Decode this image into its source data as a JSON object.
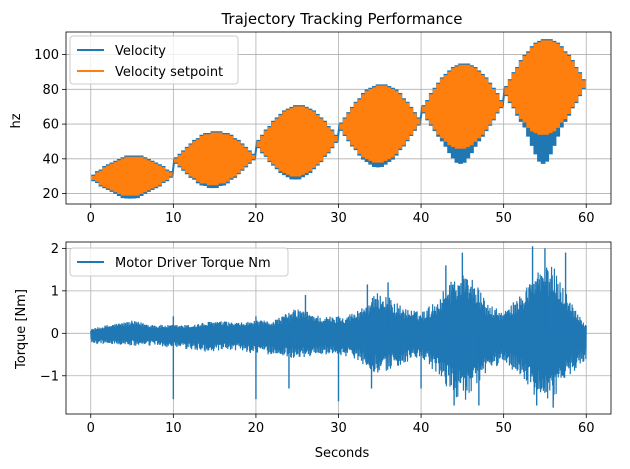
{
  "chart_data": [
    {
      "type": "line",
      "title": "Trajectory Tracking Performance",
      "xlabel": "",
      "ylabel": "hz",
      "xlim": [
        -3,
        63
      ],
      "ylim": [
        14,
        113
      ],
      "xticks": [
        0,
        10,
        20,
        30,
        40,
        50,
        60
      ],
      "yticks": [
        20,
        40,
        60,
        80,
        100
      ],
      "grid": true,
      "legend_position": "top-left",
      "series": [
        {
          "name": "Velocity",
          "color": "#1f77b4"
        },
        {
          "name": "Velocity setpoint",
          "color": "#ff7f0e"
        }
      ],
      "segments": [
        {
          "x_start": 0,
          "x_end": 10,
          "center": 30,
          "amplitude": 11,
          "velocity_dip": 1
        },
        {
          "x_start": 10,
          "x_end": 20,
          "center": 40,
          "amplitude": 15,
          "velocity_dip": 1
        },
        {
          "x_start": 20,
          "x_end": 30,
          "center": 50,
          "amplitude": 20,
          "velocity_dip": 1
        },
        {
          "x_start": 30,
          "x_end": 40,
          "center": 60,
          "amplitude": 22,
          "velocity_dip": 2
        },
        {
          "x_start": 40,
          "x_end": 50,
          "center": 70,
          "amplitude": 24,
          "velocity_dip": 8
        },
        {
          "x_start": 50,
          "x_end": 60,
          "center": 81,
          "amplitude": 27,
          "velocity_dip": 16
        }
      ]
    },
    {
      "type": "line",
      "title": "",
      "xlabel": "Seconds",
      "ylabel": "Torque [Nm]",
      "xlim": [
        -3,
        63
      ],
      "ylim": [
        -1.9,
        2.15
      ],
      "xticks": [
        0,
        10,
        20,
        30,
        40,
        50,
        60
      ],
      "yticks": [
        -1,
        0,
        1,
        2
      ],
      "ytick_labels": [
        "−1",
        "0",
        "1",
        "2"
      ],
      "grid": true,
      "legend_position": "top-left",
      "series": [
        {
          "name": "Motor Driver Torque Nm",
          "color": "#1f77b4"
        }
      ],
      "envelope": [
        {
          "x": 0,
          "upper": 0.1,
          "lower": -0.25
        },
        {
          "x": 2,
          "upper": 0.2,
          "lower": -0.25
        },
        {
          "x": 5,
          "upper": 0.3,
          "lower": -0.3
        },
        {
          "x": 8,
          "upper": 0.2,
          "lower": -0.3
        },
        {
          "x": 10,
          "upper": 0.2,
          "lower": -0.35
        },
        {
          "x": 12,
          "upper": 0.2,
          "lower": -0.4
        },
        {
          "x": 15,
          "upper": 0.3,
          "lower": -0.45
        },
        {
          "x": 18,
          "upper": 0.25,
          "lower": -0.4
        },
        {
          "x": 20,
          "upper": 0.3,
          "lower": -0.5
        },
        {
          "x": 22,
          "upper": 0.3,
          "lower": -0.5
        },
        {
          "x": 25,
          "upper": 0.6,
          "lower": -0.6
        },
        {
          "x": 28,
          "upper": 0.4,
          "lower": -0.5
        },
        {
          "x": 30,
          "upper": 0.4,
          "lower": -0.5
        },
        {
          "x": 32,
          "upper": 0.5,
          "lower": -0.6
        },
        {
          "x": 35,
          "upper": 1.0,
          "lower": -1.0
        },
        {
          "x": 38,
          "upper": 0.6,
          "lower": -0.7
        },
        {
          "x": 40,
          "upper": 0.5,
          "lower": -0.6
        },
        {
          "x": 42,
          "upper": 0.8,
          "lower": -1.0
        },
        {
          "x": 44,
          "upper": 1.4,
          "lower": -1.5
        },
        {
          "x": 46,
          "upper": 1.4,
          "lower": -1.6
        },
        {
          "x": 48,
          "upper": 0.7,
          "lower": -0.9
        },
        {
          "x": 50,
          "upper": 0.5,
          "lower": -0.7
        },
        {
          "x": 52,
          "upper": 0.9,
          "lower": -1.0
        },
        {
          "x": 54,
          "upper": 1.5,
          "lower": -1.6
        },
        {
          "x": 56,
          "upper": 1.6,
          "lower": -1.6
        },
        {
          "x": 58,
          "upper": 0.8,
          "lower": -1.0
        },
        {
          "x": 60,
          "upper": 0.2,
          "lower": -0.6
        }
      ],
      "spikes": [
        {
          "x": 10,
          "y": -1.55
        },
        {
          "x": 10,
          "y": 0.4
        },
        {
          "x": 20,
          "y": -1.55
        },
        {
          "x": 20,
          "y": 0.4
        },
        {
          "x": 24,
          "y": -1.3
        },
        {
          "x": 26,
          "y": 0.9
        },
        {
          "x": 30,
          "y": -1.6
        },
        {
          "x": 30,
          "y": 0.4
        },
        {
          "x": 33.5,
          "y": 1.15
        },
        {
          "x": 34,
          "y": -1.3
        },
        {
          "x": 36,
          "y": 1.2
        },
        {
          "x": 40,
          "y": -1.3
        },
        {
          "x": 43,
          "y": 1.6
        },
        {
          "x": 44,
          "y": -1.7
        },
        {
          "x": 45,
          "y": 1.9
        },
        {
          "x": 47,
          "y": -1.7
        },
        {
          "x": 53.5,
          "y": 2.05
        },
        {
          "x": 54,
          "y": -1.7
        },
        {
          "x": 55,
          "y": 2.0
        },
        {
          "x": 56,
          "y": -1.75
        },
        {
          "x": 57.5,
          "y": 1.9
        }
      ]
    }
  ]
}
